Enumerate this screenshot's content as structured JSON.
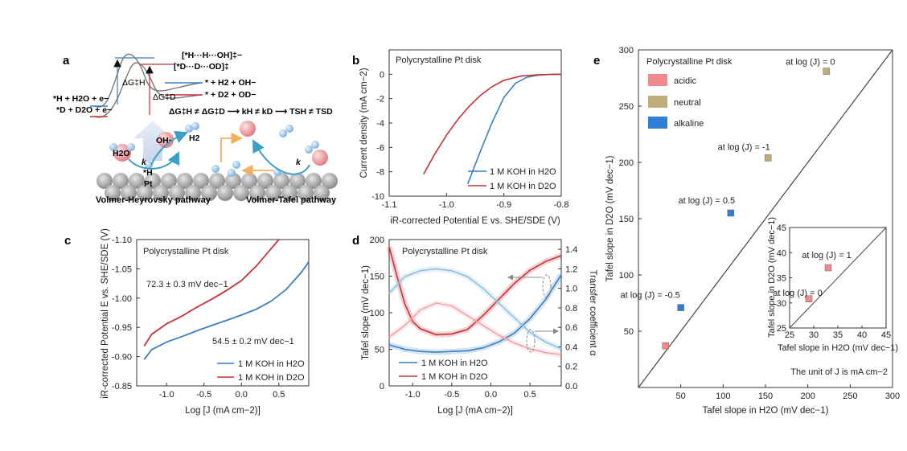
{
  "panel_labels": {
    "a": "a",
    "b": "b",
    "c": "c",
    "d": "d",
    "e": "e"
  },
  "colors": {
    "h2o": "#3a7fc1",
    "d2o": "#c8303a",
    "acidic": "#f08a8f",
    "neutral": "#bfae7a",
    "alkaline": "#2f7fd6",
    "schematic_blue": "#3aa0c8",
    "schematic_red": "#d95a63"
  },
  "panel_a": {
    "dg_h": "ΔG‡H",
    "dg_d": "ΔG‡D",
    "ts_h": "[*H···H···OH]‡−",
    "ts_d": "[*D···D···OD]‡",
    "prod_h": "* + H2 + OH−",
    "prod_d": "* + D2 + OD−",
    "react_h": "*H + H2O + e−",
    "react_d": "*D + D2O + e−",
    "relation": "ΔG‡H ≠ ΔG‡D ⟶ kH ≠ kD ⟶ TSH ≠ TSD",
    "mol_h2o": "H2O",
    "mol_oh": "OH−",
    "mol_h2": "H2",
    "k1": "k",
    "k2": "k",
    "star_h": "*H",
    "pt": "Pt",
    "pathway_1": "Volmer-Heyrovsky pathway",
    "pathway_2": "Volmer-Tafel pathway"
  },
  "panel_b": {
    "chart_data": {
      "type": "line",
      "title": "Polycrystalline Pt disk",
      "xlabel": "iR-corrected Potential E vs. SHE/SDE (V)",
      "ylabel": "Current density (mA cm−2)",
      "xlim": [
        -1.1,
        -0.8
      ],
      "ylim": [
        -10,
        2
      ],
      "xticks": [
        "-1.1",
        "-1.0",
        "-0.9",
        "-0.8"
      ],
      "yticks": [
        "0",
        "-2",
        "-4",
        "-6",
        "-8",
        "-10"
      ],
      "series": [
        {
          "name": "1 M KOH in H2O",
          "x": [
            -0.963,
            -0.94,
            -0.92,
            -0.9,
            -0.88,
            -0.86,
            -0.84,
            -0.82,
            -0.8
          ],
          "y": [
            -9.0,
            -6.2,
            -3.9,
            -1.9,
            -0.75,
            -0.25,
            -0.08,
            -0.02,
            0
          ]
        },
        {
          "name": "1 M KOH in D2O",
          "x": [
            -1.04,
            -1.02,
            -1.0,
            -0.98,
            -0.96,
            -0.94,
            -0.92,
            -0.9,
            -0.87,
            -0.84,
            -0.8
          ],
          "y": [
            -8.2,
            -6.5,
            -5.0,
            -3.7,
            -2.6,
            -1.7,
            -1.0,
            -0.5,
            -0.15,
            -0.04,
            0
          ]
        }
      ]
    }
  },
  "panel_c": {
    "chart_data": {
      "type": "line",
      "title": "Polycrystalline Pt disk",
      "xlabel": "Log [J (mA cm−2)]",
      "ylabel": "iR-corrected Potential E vs. SHE/SDE (V)",
      "xlim": [
        -1.4,
        0.9
      ],
      "ylim": [
        -0.85,
        -1.1
      ],
      "xticks": [
        "-1.0",
        "-0.5",
        "0.0",
        "0.5"
      ],
      "yticks": [
        "-1.10",
        "-1.05",
        "-1.00",
        "-0.95",
        "-0.90",
        "-0.85"
      ],
      "slope_d2o": "72.3 ± 0.3 mV dec−1",
      "slope_h2o": "54.5 ± 0.2 mV dec−1",
      "series": [
        {
          "name": "1 M KOH in H2O",
          "x": [
            -1.3,
            -1.2,
            -1.0,
            -0.8,
            -0.6,
            -0.4,
            -0.2,
            0.0,
            0.2,
            0.4,
            0.6,
            0.8,
            0.9
          ],
          "y": [
            -0.895,
            -0.912,
            -0.925,
            -0.934,
            -0.944,
            -0.953,
            -0.962,
            -0.971,
            -0.981,
            -0.995,
            -1.015,
            -1.044,
            -1.062
          ]
        },
        {
          "name": "1 M KOH in D2O",
          "x": [
            -1.3,
            -1.2,
            -1.0,
            -0.8,
            -0.6,
            -0.4,
            -0.2,
            0.0,
            0.2,
            0.4,
            0.5
          ],
          "y": [
            -0.918,
            -0.938,
            -0.956,
            -0.969,
            -0.984,
            -0.998,
            -1.013,
            -1.03,
            -1.055,
            -1.085,
            -1.1
          ]
        }
      ]
    }
  },
  "panel_d": {
    "chart_data": {
      "type": "line",
      "title": "Polycrystalline Pt disk",
      "xlabel": "Log [J (mA cm−2)]",
      "ylabel": "Tafel slope (mV dec−1)",
      "y2label": "Transfer coefficient α",
      "xlim": [
        -1.3,
        0.9
      ],
      "ylim": [
        0,
        200
      ],
      "y2lim": [
        0,
        1.5
      ],
      "xticks": [
        "-1.0",
        "-0.5",
        "0.0",
        "0.5"
      ],
      "yticks": [
        "0",
        "50",
        "100",
        "150",
        "200"
      ],
      "y2ticks": [
        "0.0",
        "0.2",
        "0.4",
        "0.6",
        "0.8",
        "1.0",
        "1.2",
        "1.4"
      ],
      "series": [
        {
          "name": "1 M KOH in H2O",
          "axis": "left",
          "x": [
            -1.3,
            -1.1,
            -0.9,
            -0.7,
            -0.5,
            -0.3,
            -0.1,
            0.1,
            0.3,
            0.5,
            0.7,
            0.9
          ],
          "y": [
            56,
            50,
            47,
            46,
            47,
            48,
            52,
            60,
            72,
            92,
            118,
            152
          ]
        },
        {
          "name": "1 M KOH in D2O",
          "axis": "left",
          "x": [
            -1.3,
            -1.2,
            -1.1,
            -1.0,
            -0.9,
            -0.7,
            -0.5,
            -0.3,
            -0.1,
            0.1,
            0.3,
            0.5,
            0.7,
            0.9
          ],
          "y": [
            190,
            150,
            112,
            88,
            78,
            70,
            71,
            77,
            96,
            118,
            140,
            158,
            170,
            178
          ]
        },
        {
          "name": "α H2O",
          "axis": "right",
          "x": [
            -1.3,
            -1.1,
            -0.9,
            -0.7,
            -0.5,
            -0.3,
            -0.1,
            0.1,
            0.3,
            0.5,
            0.7,
            0.9
          ],
          "y": [
            0.95,
            1.12,
            1.18,
            1.2,
            1.18,
            1.12,
            1.0,
            0.85,
            0.7,
            0.55,
            0.45,
            0.38
          ]
        },
        {
          "name": "α D2O",
          "axis": "right",
          "x": [
            -1.3,
            -1.1,
            -0.9,
            -0.7,
            -0.5,
            -0.3,
            -0.1,
            0.1,
            0.3,
            0.5,
            0.7,
            0.9
          ],
          "y": [
            0.5,
            0.62,
            0.78,
            0.85,
            0.82,
            0.72,
            0.62,
            0.52,
            0.44,
            0.38,
            0.34,
            0.32
          ]
        }
      ]
    }
  },
  "panel_e": {
    "chart_data": {
      "type": "scatter",
      "title": "Polycrystalline Pt disk",
      "xlabel": "Tafel slope in H2O (mV dec−1)",
      "ylabel": "Tafel slope in D2O (mV dec−1)",
      "xlim": [
        0,
        300
      ],
      "ylim": [
        0,
        300
      ],
      "xticks": [
        "50",
        "100",
        "150",
        "200",
        "250",
        "300"
      ],
      "yticks": [
        "50",
        "100",
        "150",
        "200",
        "250",
        "300"
      ],
      "legend": [
        "acidic",
        "neutral",
        "alkaline"
      ],
      "points": [
        {
          "label": "at log (J) = 0",
          "x": 222,
          "y": 281,
          "group": "neutral"
        },
        {
          "label": "at log (J) = -1",
          "x": 153,
          "y": 204,
          "group": "neutral"
        },
        {
          "label": "at log (J) = 0.5",
          "x": 109,
          "y": 155,
          "group": "alkaline"
        },
        {
          "label": "at log (J) = -0.5",
          "x": 50,
          "y": 71,
          "group": "alkaline"
        },
        {
          "label": "",
          "x": 32,
          "y": 37,
          "group": "acidic"
        }
      ],
      "inset": {
        "xlim": [
          25,
          45
        ],
        "ylim": [
          25,
          45
        ],
        "xticks": [
          "25",
          "30",
          "35",
          "40",
          "45"
        ],
        "yticks": [
          "25",
          "30",
          "35",
          "40",
          "45"
        ],
        "xlabel": "Tafel slope in H2O (mV dec−1)",
        "ylabel": "Tafel slope in D2O (mV dec−1)",
        "points": [
          {
            "label": "at log (J) = 1",
            "x": 33,
            "y": 37
          },
          {
            "label": "at log (J) = 0",
            "x": 29,
            "y": 30.8
          }
        ]
      },
      "footnote": "The unit of J is mA cm−2"
    }
  }
}
